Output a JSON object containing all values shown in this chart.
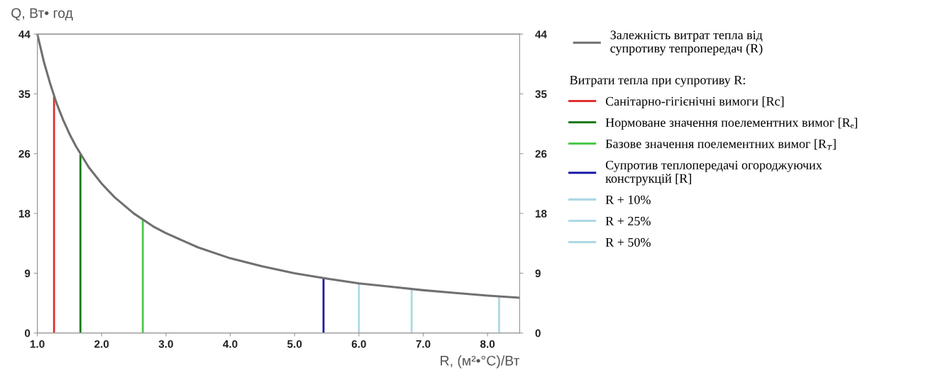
{
  "chart_data": {
    "type": "line",
    "xlabel": "R, (м²•°C)/Вт",
    "ylabel": "Q, Вт• год",
    "legend_title": "Витрати тепла при супротиву R:",
    "series": [
      {
        "name": "Залежність витрат тепла від\nсупротиву тепропередач (R)",
        "color": "#707070",
        "x": [
          1.0,
          1.1,
          1.2,
          1.3,
          1.4,
          1.5,
          1.6,
          1.8,
          2.0,
          2.2,
          2.5,
          2.8,
          3.0,
          3.5,
          4.0,
          4.5,
          5.0,
          5.5,
          6.0,
          6.5,
          7.0,
          7.5,
          8.0,
          8.5
        ],
        "values": [
          44,
          40,
          36.7,
          33.8,
          31.4,
          29.3,
          27.5,
          24.4,
          22,
          20,
          17.6,
          15.7,
          14.7,
          12.6,
          11,
          9.8,
          8.8,
          8,
          7.3,
          6.8,
          6.3,
          5.9,
          5.5,
          5.2
        ]
      },
      {
        "name": "Санітарно-гігієнічні вимоги [Rc]",
        "color": "#e03030",
        "x": [
          1.26,
          1.26
        ],
        "values": [
          0,
          34.9
        ]
      },
      {
        "name": "Нормоване значення поелементних вимог [Rₑ]",
        "color": "#1e7a1e",
        "x": [
          1.67,
          1.67
        ],
        "values": [
          0,
          26.3
        ]
      },
      {
        "name": "Базове значення поелементних вимог [R$_{т}$]",
        "color": "#4cc84c",
        "x": [
          2.64,
          2.64
        ],
        "values": [
          0,
          16.7
        ]
      },
      {
        "name": "Супротив теплопередачі огороджуючих\nконструкцій [R]",
        "color": "#1a1aa8",
        "x": [
          5.45,
          5.45
        ],
        "values": [
          0,
          8.1
        ]
      },
      {
        "name": "R + 10%",
        "color": "#add8e6",
        "x": [
          6.0,
          6.0
        ],
        "values": [
          0,
          7.3
        ]
      },
      {
        "name": "R + 25%",
        "color": "#add8e6",
        "x": [
          6.82,
          6.82
        ],
        "values": [
          0,
          6.5
        ]
      },
      {
        "name": "R + 50%",
        "color": "#add8e6",
        "x": [
          8.18,
          8.18
        ],
        "values": [
          0,
          5.4
        ]
      }
    ],
    "xlim": [
      1.0,
      8.5
    ],
    "xticks": [
      {
        "value": 1,
        "label": "1.0"
      },
      {
        "value": 2,
        "label": "2.0"
      },
      {
        "value": 3,
        "label": "3.0"
      },
      {
        "value": 4,
        "label": "4.0"
      },
      {
        "value": 5,
        "label": "5.0"
      },
      {
        "value": 6,
        "label": "6.0"
      },
      {
        "value": 7,
        "label": "7.0"
      },
      {
        "value": 8,
        "label": "8.0"
      }
    ],
    "ylim": [
      0,
      44
    ],
    "yticks": [
      0,
      {
        "value": 8.8,
        "label": "9"
      },
      {
        "value": 17.6,
        "label": "18"
      },
      {
        "value": 26.4,
        "label": "26"
      },
      {
        "value": 35.2,
        "label": "35"
      },
      44
    ],
    "y2lim": [
      0,
      44
    ],
    "y2ticks": [
      0,
      {
        "value": 8.8,
        "label": "9"
      },
      {
        "value": 17.6,
        "label": "18"
      },
      {
        "value": 26.4,
        "label": "26"
      },
      {
        "value": 35.2,
        "label": "35"
      },
      44
    ],
    "grid": false,
    "legend": "right",
    "line_style": "solid",
    "marker": "none"
  }
}
